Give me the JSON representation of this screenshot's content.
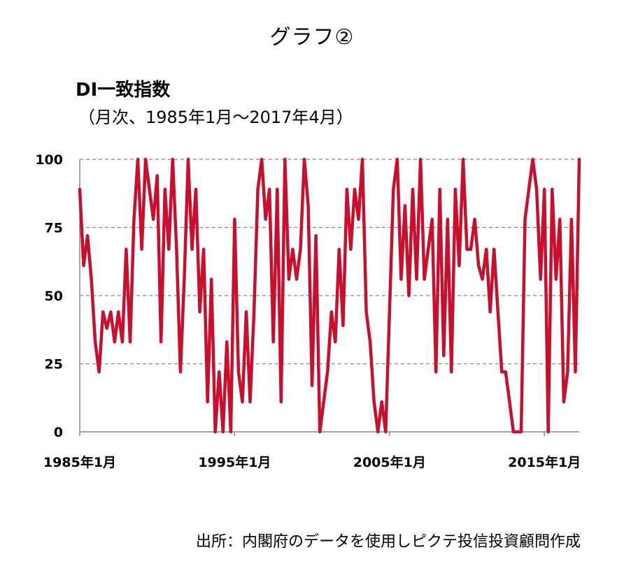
{
  "heading": "グラフ②",
  "source": "出所：内閣府のデータを使用しピクテ投信投資顧問作成",
  "chart_data": {
    "type": "line",
    "title": "DI一致指数",
    "subtitle": "（月次、1985年1月～2017年4月）",
    "xlabel": "",
    "ylabel": "",
    "ylim": [
      0,
      100
    ],
    "yticks": [
      "0",
      "25",
      "50",
      "75",
      "100"
    ],
    "xticks": [
      {
        "label": "1985年1月",
        "value": 1985.0
      },
      {
        "label": "1995年1月",
        "value": 1995.0
      },
      {
        "label": "2005年1月",
        "value": 2005.0
      },
      {
        "label": "2015年1月",
        "value": 2015.0
      }
    ],
    "xrange": [
      1985.0,
      2017.25
    ],
    "grid": "horizontal dashed",
    "color": "#c8102e",
    "series": [
      {
        "name": "",
        "points": [
          [
            1985.0,
            89
          ],
          [
            1985.25,
            61
          ],
          [
            1985.5,
            72
          ],
          [
            1985.75,
            56
          ],
          [
            1986.0,
            33
          ],
          [
            1986.25,
            22
          ],
          [
            1986.5,
            44
          ],
          [
            1986.75,
            38
          ],
          [
            1987.0,
            44
          ],
          [
            1987.25,
            33
          ],
          [
            1987.5,
            44
          ],
          [
            1987.75,
            33
          ],
          [
            1988.0,
            67
          ],
          [
            1988.25,
            33
          ],
          [
            1988.5,
            78
          ],
          [
            1988.75,
            100
          ],
          [
            1989.0,
            67
          ],
          [
            1989.25,
            100
          ],
          [
            1989.5,
            89
          ],
          [
            1989.75,
            78
          ],
          [
            1990.0,
            94
          ],
          [
            1990.25,
            33
          ],
          [
            1990.5,
            89
          ],
          [
            1990.75,
            67
          ],
          [
            1991.0,
            100
          ],
          [
            1991.25,
            67
          ],
          [
            1991.5,
            22
          ],
          [
            1991.75,
            56
          ],
          [
            1992.0,
            100
          ],
          [
            1992.25,
            67
          ],
          [
            1992.5,
            89
          ],
          [
            1992.75,
            44
          ],
          [
            1993.0,
            67
          ],
          [
            1993.25,
            11
          ],
          [
            1993.5,
            56
          ],
          [
            1993.75,
            0
          ],
          [
            1994.0,
            22
          ],
          [
            1994.25,
            0
          ],
          [
            1994.5,
            33
          ],
          [
            1994.75,
            0
          ],
          [
            1995.0,
            78
          ],
          [
            1995.25,
            22
          ],
          [
            1995.5,
            11
          ],
          [
            1995.75,
            44
          ],
          [
            1996.0,
            11
          ],
          [
            1996.25,
            44
          ],
          [
            1996.5,
            89
          ],
          [
            1996.75,
            100
          ],
          [
            1997.0,
            78
          ],
          [
            1997.25,
            89
          ],
          [
            1997.5,
            33
          ],
          [
            1997.75,
            89
          ],
          [
            1998.0,
            11
          ],
          [
            1998.25,
            100
          ],
          [
            1998.5,
            56
          ],
          [
            1998.75,
            67
          ],
          [
            1999.0,
            56
          ],
          [
            1999.25,
            67
          ],
          [
            1999.5,
            100
          ],
          [
            1999.75,
            83
          ],
          [
            2000.0,
            17
          ],
          [
            2000.25,
            72
          ],
          [
            2000.5,
            0
          ],
          [
            2000.75,
            11
          ],
          [
            2001.0,
            22
          ],
          [
            2001.25,
            44
          ],
          [
            2001.5,
            33
          ],
          [
            2001.75,
            67
          ],
          [
            2002.0,
            39
          ],
          [
            2002.25,
            89
          ],
          [
            2002.5,
            67
          ],
          [
            2002.75,
            89
          ],
          [
            2003.0,
            78
          ],
          [
            2003.25,
            100
          ],
          [
            2003.5,
            44
          ],
          [
            2003.75,
            33
          ],
          [
            2004.0,
            11
          ],
          [
            2004.25,
            0
          ],
          [
            2004.5,
            11
          ],
          [
            2004.75,
            0
          ],
          [
            2005.0,
            44
          ],
          [
            2005.25,
            89
          ],
          [
            2005.5,
            100
          ],
          [
            2005.75,
            56
          ],
          [
            2006.0,
            83
          ],
          [
            2006.25,
            50
          ],
          [
            2006.5,
            89
          ],
          [
            2006.75,
            56
          ],
          [
            2007.0,
            100
          ],
          [
            2007.25,
            56
          ],
          [
            2007.5,
            67
          ],
          [
            2007.75,
            78
          ],
          [
            2008.0,
            22
          ],
          [
            2008.25,
            89
          ],
          [
            2008.5,
            28
          ],
          [
            2008.75,
            78
          ],
          [
            2009.0,
            22
          ],
          [
            2009.25,
            89
          ],
          [
            2009.5,
            61
          ],
          [
            2009.75,
            100
          ],
          [
            2010.0,
            67
          ],
          [
            2010.25,
            67
          ],
          [
            2010.5,
            78
          ],
          [
            2010.75,
            61
          ],
          [
            2011.0,
            56
          ],
          [
            2011.25,
            67
          ],
          [
            2011.5,
            44
          ],
          [
            2011.75,
            67
          ],
          [
            2012.0,
            44
          ],
          [
            2012.25,
            22
          ],
          [
            2012.5,
            22
          ],
          [
            2012.75,
            11
          ],
          [
            2013.0,
            0
          ],
          [
            2013.25,
            0
          ],
          [
            2013.5,
            0
          ],
          [
            2013.75,
            78
          ],
          [
            2014.0,
            89
          ],
          [
            2014.25,
            100
          ],
          [
            2014.5,
            89
          ],
          [
            2014.75,
            56
          ],
          [
            2015.0,
            89
          ],
          [
            2015.25,
            0
          ],
          [
            2015.5,
            89
          ],
          [
            2015.75,
            56
          ],
          [
            2016.0,
            78
          ],
          [
            2016.25,
            11
          ],
          [
            2016.5,
            22
          ],
          [
            2016.75,
            78
          ],
          [
            2017.0,
            22
          ],
          [
            2017.25,
            100
          ]
        ]
      }
    ]
  }
}
